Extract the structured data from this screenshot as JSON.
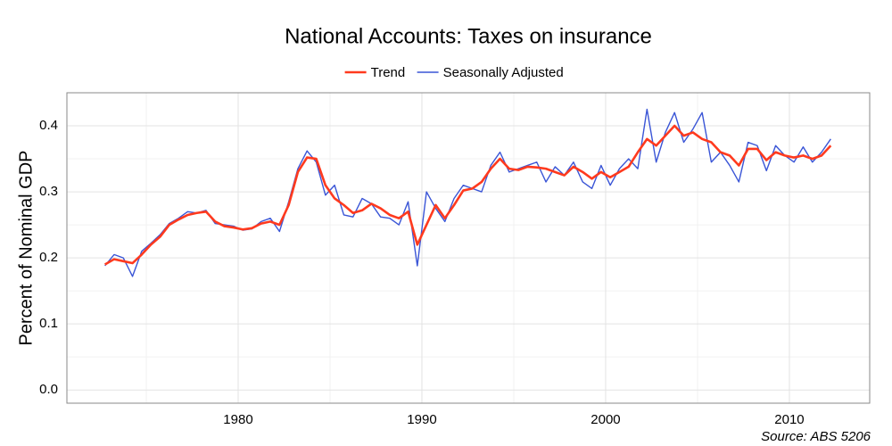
{
  "chart_data": {
    "type": "line",
    "title": "National Accounts: Taxes on insurance",
    "y_label": "Percent of Nominal GDP",
    "source": "Source: ABS 5206",
    "legend": "top",
    "grid": true,
    "xlim": [
      1970.68,
      2014.37
    ],
    "ylim": [
      -0.02,
      0.45
    ],
    "xticks": [
      1980,
      1990,
      2000,
      2010
    ],
    "x_minor_ticks": [
      1975,
      1985,
      1995,
      2005
    ],
    "yticks": [
      {
        "value": 0,
        "label": "0.0"
      },
      0.1,
      0.2,
      0.3,
      0.4
    ],
    "y_minor_ticks": [
      0.05,
      0.15,
      0.25,
      0.35
    ],
    "x": [
      1972.75,
      1973.25,
      1973.75,
      1974.25,
      1974.75,
      1975.25,
      1975.75,
      1976.25,
      1976.75,
      1977.25,
      1977.75,
      1978.25,
      1978.75,
      1979.25,
      1979.75,
      1980.25,
      1980.75,
      1981.25,
      1981.75,
      1982.25,
      1982.75,
      1983.25,
      1983.75,
      1984.25,
      1984.75,
      1985.25,
      1985.75,
      1986.25,
      1986.75,
      1987.25,
      1987.75,
      1988.25,
      1988.75,
      1989.25,
      1989.75,
      1990.25,
      1990.75,
      1991.25,
      1991.75,
      1992.25,
      1992.75,
      1993.25,
      1993.75,
      1994.25,
      1994.75,
      1995.25,
      1995.75,
      1996.25,
      1996.75,
      1997.25,
      1997.75,
      1998.25,
      1998.75,
      1999.25,
      1999.75,
      2000.25,
      2000.75,
      2001.25,
      2001.75,
      2002.25,
      2002.75,
      2003.25,
      2003.75,
      2004.25,
      2004.75,
      2005.25,
      2005.75,
      2006.25,
      2006.75,
      2007.25,
      2007.75,
      2008.25,
      2008.75,
      2009.25,
      2009.75,
      2010.25,
      2010.75,
      2011.25,
      2011.75,
      2012.25
    ],
    "series": [
      {
        "name": "Trend",
        "color": "#ff3a1e",
        "width": 2.6,
        "values": [
          0.19,
          0.198,
          0.195,
          0.192,
          0.205,
          0.22,
          0.232,
          0.25,
          0.258,
          0.265,
          0.268,
          0.27,
          0.255,
          0.248,
          0.246,
          0.243,
          0.245,
          0.252,
          0.255,
          0.25,
          0.28,
          0.33,
          0.352,
          0.35,
          0.31,
          0.29,
          0.28,
          0.268,
          0.272,
          0.282,
          0.275,
          0.265,
          0.26,
          0.27,
          0.22,
          0.25,
          0.28,
          0.26,
          0.28,
          0.302,
          0.305,
          0.315,
          0.335,
          0.35,
          0.335,
          0.333,
          0.338,
          0.337,
          0.335,
          0.33,
          0.325,
          0.338,
          0.33,
          0.32,
          0.33,
          0.322,
          0.33,
          0.338,
          0.36,
          0.38,
          0.37,
          0.385,
          0.4,
          0.385,
          0.39,
          0.38,
          0.375,
          0.36,
          0.355,
          0.34,
          0.365,
          0.365,
          0.348,
          0.36,
          0.355,
          0.352,
          0.355,
          0.35,
          0.355,
          0.37
        ]
      },
      {
        "name": "Seasonally Adjusted",
        "color": "#3a55d6",
        "width": 1.4,
        "values": [
          0.188,
          0.205,
          0.2,
          0.172,
          0.21,
          0.222,
          0.235,
          0.252,
          0.26,
          0.27,
          0.268,
          0.272,
          0.252,
          0.25,
          0.248,
          0.242,
          0.244,
          0.255,
          0.26,
          0.24,
          0.285,
          0.335,
          0.362,
          0.345,
          0.295,
          0.31,
          0.265,
          0.262,
          0.29,
          0.282,
          0.262,
          0.26,
          0.25,
          0.285,
          0.188,
          0.3,
          0.275,
          0.255,
          0.29,
          0.31,
          0.305,
          0.3,
          0.34,
          0.36,
          0.33,
          0.335,
          0.34,
          0.345,
          0.315,
          0.338,
          0.325,
          0.345,
          0.315,
          0.305,
          0.34,
          0.31,
          0.335,
          0.35,
          0.335,
          0.425,
          0.345,
          0.39,
          0.42,
          0.375,
          0.395,
          0.42,
          0.345,
          0.36,
          0.34,
          0.315,
          0.375,
          0.37,
          0.332,
          0.37,
          0.355,
          0.345,
          0.368,
          0.345,
          0.36,
          0.38
        ]
      }
    ]
  }
}
